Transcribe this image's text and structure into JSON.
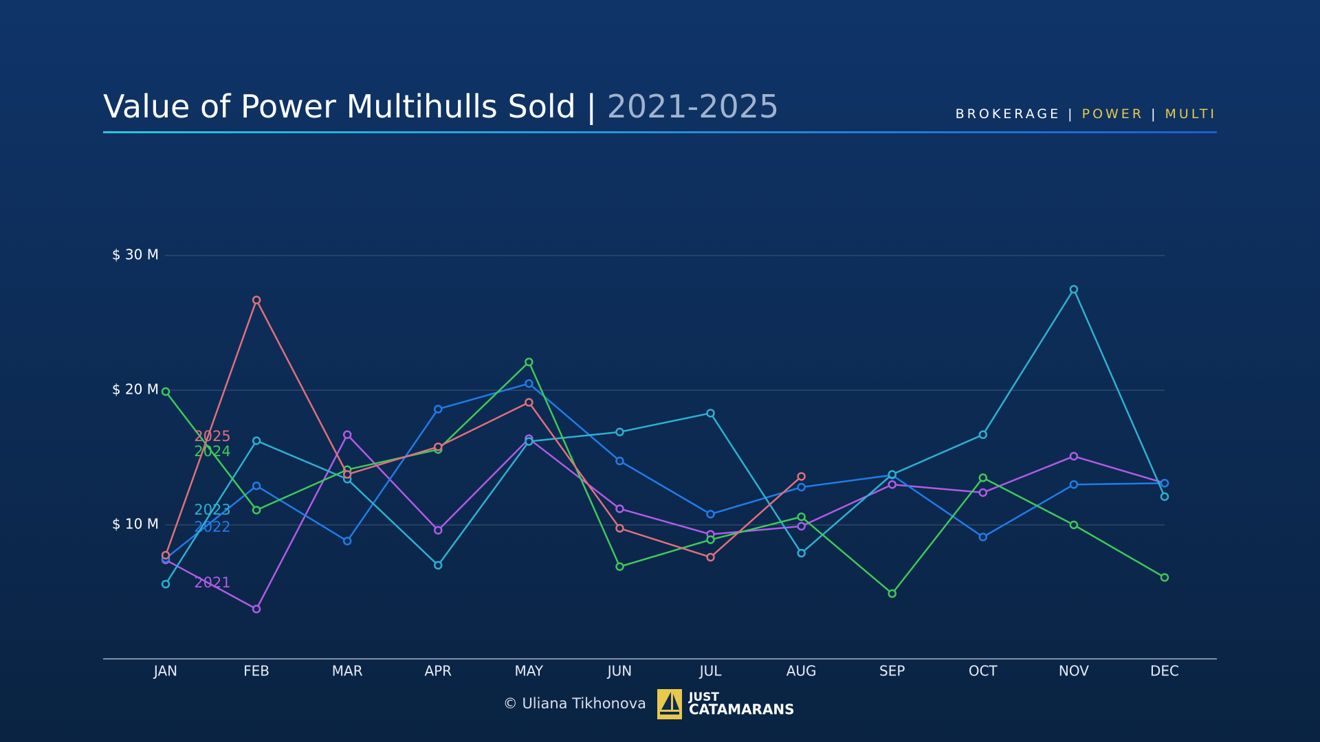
{
  "chart_data": {
    "type": "line",
    "title": "Value of Power Multihulls Sold |",
    "subtitle": "2021-2025",
    "tagline": [
      "BROKERAGE",
      "|",
      "POWER",
      "|",
      "MULTI"
    ],
    "credit": "© Uliana Tikhonova",
    "logo": [
      "JUST",
      "CATAMARANS"
    ],
    "categories": [
      "JAN",
      "FEB",
      "MAR",
      "APR",
      "MAY",
      "JUN",
      "JUL",
      "AUG",
      "SEP",
      "OCT",
      "NOV",
      "DEC"
    ],
    "ylim": [
      0,
      30
    ],
    "yticks": [
      {
        "value": 10,
        "label": "$ 10 M"
      },
      {
        "value": 20,
        "label": "$ 20 M"
      },
      {
        "value": 30,
        "label": "$ 30 M"
      }
    ],
    "grid": true,
    "series": [
      {
        "name": "2021",
        "color": "#b05ce6",
        "values": [
          7.4,
          3.75,
          16.7,
          9.6,
          16.4,
          11.2,
          9.3,
          9.9,
          13.0,
          12.4,
          15.1,
          13.1
        ]
      },
      {
        "name": "2022",
        "color": "#1f7de8",
        "values": [
          7.5,
          12.9,
          8.8,
          18.6,
          20.5,
          14.75,
          10.8,
          12.8,
          13.7,
          9.1,
          13.0,
          13.1
        ]
      },
      {
        "name": "2023",
        "color": "#2eb0d0",
        "values": [
          5.6,
          16.25,
          13.4,
          7.0,
          16.2,
          16.9,
          18.3,
          7.9,
          13.75,
          16.7,
          27.5,
          12.1
        ]
      },
      {
        "name": "2024",
        "color": "#3ec95a",
        "values": [
          19.9,
          11.1,
          14.1,
          15.6,
          22.1,
          6.9,
          8.9,
          10.6,
          4.9,
          13.5,
          10.0,
          6.1
        ]
      },
      {
        "name": "2025",
        "color": "#e0707c",
        "values": [
          7.75,
          26.7,
          13.75,
          15.8,
          19.1,
          9.75,
          7.6,
          13.6,
          null,
          null,
          null,
          null
        ]
      }
    ]
  }
}
